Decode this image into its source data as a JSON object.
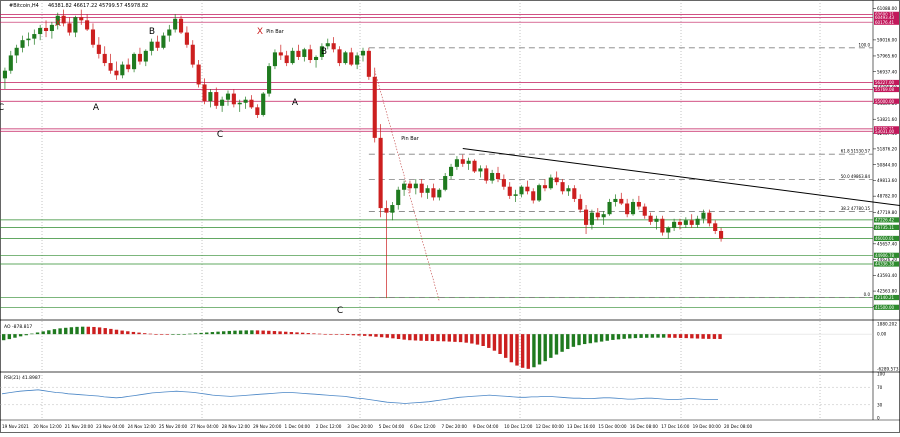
{
  "header": {
    "symbol": "#Bitcoin,H4",
    "ohlc": "46381.82 46617.22 45799.57 45978.82"
  },
  "colors": {
    "bull": "#1f7a1f",
    "bear": "#cc1f1f",
    "support": "#2e8b2e",
    "resistance": "#c2185b",
    "trend": "#000000",
    "dashed": "#808080",
    "rsi": "#4a86c6",
    "label_green_bg": "#2e8b2e",
    "label_red_bg": "#c2185b"
  },
  "panels": {
    "ao_title": "AO -878.817",
    "rsi_title": "RSI(21) 41.8987"
  },
  "chart_data": [
    {
      "type": "candlestick",
      "title": "#Bitcoin,H4",
      "y_ticks": [
        "61088.00",
        "59016.00",
        "57965.60",
        "56937.40",
        "55890.60",
        "54869.80",
        "53821.60",
        "52907.40",
        "51876.20",
        "50844.00",
        "49813.60",
        "48782.00",
        "47719.80",
        "46689.60",
        "45657.40",
        "44626.20",
        "43593.40",
        "42563.80",
        "41533.40"
      ],
      "ylim": [
        40800,
        61500
      ],
      "x_labels": [
        "19 Nov 2021",
        "20 Nov 12:00",
        "21 Nov 20:00",
        "23 Nov 04:00",
        "24 Nov 12:00",
        "25 Nov 20:00",
        "27 Nov 04:00",
        "28 Nov 12:00",
        "29 Nov 20:00",
        "1 Dec 04:00",
        "2 Dec 12:00",
        "3 Dec 20:00",
        "5 Dec 04:00",
        "6 Dec 12:00",
        "7 Dec 20:00",
        "9 Dec 04:00",
        "10 Dec 12:00",
        "12 Dec 00:00",
        "13 Dec 16:00",
        "15 Dec 00:00",
        "16 Dec 08:00",
        "17 Dec 16:00",
        "19 Dec 00:00",
        "20 Dec 08:00"
      ],
      "candles": [
        [
          56500,
          57200,
          55800,
          57000
        ],
        [
          57000,
          58300,
          56800,
          58000
        ],
        [
          58000,
          58700,
          57500,
          58500
        ],
        [
          58500,
          59300,
          58200,
          59000
        ],
        [
          59000,
          59500,
          58600,
          59100
        ],
        [
          59100,
          59700,
          58700,
          59400
        ],
        [
          59400,
          60000,
          59000,
          59800
        ],
        [
          59800,
          60300,
          59200,
          59600
        ],
        [
          59600,
          60200,
          59100,
          60000
        ],
        [
          60000,
          60800,
          59700,
          60600
        ],
        [
          60600,
          61000,
          59900,
          60100
        ],
        [
          60100,
          60500,
          59300,
          59500
        ],
        [
          59500,
          60600,
          59200,
          60500
        ],
        [
          60500,
          61000,
          60000,
          60300
        ],
        [
          60300,
          60700,
          59600,
          59700
        ],
        [
          59700,
          60100,
          58500,
          58700
        ],
        [
          58700,
          59200,
          57800,
          58100
        ],
        [
          58100,
          58600,
          57300,
          57500
        ],
        [
          57500,
          58100,
          56800,
          57000
        ],
        [
          57000,
          57600,
          56400,
          56700
        ],
        [
          56700,
          57600,
          56500,
          57400
        ],
        [
          57400,
          57800,
          56900,
          57100
        ],
        [
          57100,
          58200,
          56900,
          58100
        ],
        [
          58100,
          58500,
          57400,
          57600
        ],
        [
          57600,
          58400,
          57300,
          58300
        ],
        [
          58300,
          59100,
          58000,
          58900
        ],
        [
          58900,
          59300,
          58300,
          58500
        ],
        [
          58500,
          59500,
          58400,
          59300
        ],
        [
          59300,
          60000,
          58900,
          59700
        ],
        [
          59700,
          60700,
          59500,
          60400
        ],
        [
          60400,
          60600,
          59400,
          59500
        ],
        [
          59500,
          59900,
          58500,
          58700
        ],
        [
          58700,
          59000,
          57200,
          57400
        ],
        [
          57400,
          57700,
          55900,
          56100
        ],
        [
          56100,
          56500,
          54800,
          55000
        ],
        [
          55000,
          55800,
          54600,
          55600
        ],
        [
          55600,
          55900,
          54500,
          54700
        ],
        [
          54700,
          55300,
          54300,
          55100
        ],
        [
          55100,
          55700,
          54700,
          55500
        ],
        [
          55500,
          55800,
          54600,
          54800
        ],
        [
          54800,
          55100,
          54300,
          54900
        ],
        [
          54900,
          55300,
          54500,
          55100
        ],
        [
          55100,
          55400,
          54500,
          54600
        ],
        [
          54600,
          54800,
          53900,
          54100
        ],
        [
          54100,
          55600,
          54000,
          55500
        ],
        [
          55500,
          57500,
          55300,
          57300
        ],
        [
          57300,
          58400,
          57100,
          58200
        ],
        [
          58200,
          58700,
          57700,
          58000
        ],
        [
          58000,
          58300,
          57300,
          57500
        ],
        [
          57500,
          58500,
          57400,
          58300
        ],
        [
          58300,
          58700,
          57700,
          57900
        ],
        [
          57900,
          58500,
          57600,
          58400
        ],
        [
          58400,
          58700,
          57500,
          57700
        ],
        [
          57700,
          58000,
          57200,
          57900
        ],
        [
          57900,
          58800,
          57700,
          58600
        ],
        [
          58600,
          59100,
          58400,
          58800
        ],
        [
          58800,
          59200,
          58200,
          58400
        ],
        [
          58400,
          58600,
          57300,
          57500
        ],
        [
          57500,
          58300,
          57400,
          58200
        ],
        [
          58200,
          58500,
          57300,
          57400
        ],
        [
          57400,
          58200,
          57100,
          58000
        ],
        [
          58000,
          58500,
          57600,
          58300
        ],
        [
          58300,
          58500,
          56400,
          56600
        ],
        [
          56600,
          57200,
          52300,
          52600
        ],
        [
          52600,
          53500,
          47400,
          48000
        ],
        [
          48000,
          48500,
          42100,
          47700
        ],
        [
          47700,
          48400,
          47200,
          48200
        ],
        [
          48200,
          49400,
          47900,
          49200
        ],
        [
          49200,
          49800,
          48800,
          49600
        ],
        [
          49600,
          49800,
          49000,
          49300
        ],
        [
          49300,
          49900,
          48900,
          49600
        ],
        [
          49600,
          49900,
          48700,
          49000
        ],
        [
          49000,
          49500,
          48600,
          49300
        ],
        [
          49300,
          49600,
          48500,
          48700
        ],
        [
          48700,
          49300,
          48500,
          49200
        ],
        [
          49200,
          50300,
          49100,
          50100
        ],
        [
          50100,
          50900,
          49900,
          50700
        ],
        [
          50700,
          51400,
          50500,
          51200
        ],
        [
          51200,
          51500,
          50700,
          50900
        ],
        [
          50900,
          51300,
          50500,
          51100
        ],
        [
          51100,
          51200,
          50300,
          50400
        ],
        [
          50400,
          50800,
          50000,
          50600
        ],
        [
          50600,
          50800,
          49600,
          49800
        ],
        [
          49800,
          50500,
          49600,
          50300
        ],
        [
          50300,
          50700,
          49700,
          49900
        ],
        [
          49900,
          50200,
          49200,
          49400
        ],
        [
          49400,
          49700,
          48600,
          48800
        ],
        [
          48800,
          49200,
          48400,
          48900
        ],
        [
          48900,
          49500,
          48700,
          49400
        ],
        [
          49400,
          49800,
          48900,
          49100
        ],
        [
          49100,
          49300,
          48300,
          48500
        ],
        [
          48500,
          49600,
          48400,
          49500
        ],
        [
          49500,
          49900,
          49100,
          49300
        ],
        [
          49300,
          50200,
          49200,
          50000
        ],
        [
          50000,
          50400,
          49500,
          49700
        ],
        [
          49700,
          49900,
          48900,
          49100
        ],
        [
          49100,
          49500,
          48800,
          49300
        ],
        [
          49300,
          49500,
          48400,
          48600
        ],
        [
          48600,
          48900,
          47700,
          47900
        ],
        [
          47900,
          48200,
          46300,
          46900
        ],
        [
          46900,
          47900,
          46600,
          47700
        ],
        [
          47700,
          48000,
          47200,
          47400
        ],
        [
          47400,
          47800,
          46900,
          47600
        ],
        [
          47600,
          48600,
          47500,
          48400
        ],
        [
          48400,
          48900,
          48100,
          48600
        ],
        [
          48600,
          49000,
          48200,
          48300
        ],
        [
          48300,
          48600,
          47400,
          47600
        ],
        [
          47600,
          48600,
          47500,
          48400
        ],
        [
          48400,
          48800,
          47900,
          48100
        ],
        [
          48100,
          48300,
          47300,
          47500
        ],
        [
          47500,
          47700,
          46900,
          47100
        ],
        [
          47100,
          47500,
          46600,
          47300
        ],
        [
          47300,
          47500,
          46200,
          46400
        ],
        [
          46400,
          46800,
          46000,
          46700
        ],
        [
          46700,
          47300,
          46500,
          47100
        ],
        [
          47100,
          47300,
          46600,
          46900
        ],
        [
          46900,
          47400,
          46700,
          47200
        ],
        [
          47200,
          47600,
          46700,
          46900
        ],
        [
          46900,
          47500,
          46700,
          47300
        ],
        [
          47300,
          47900,
          47000,
          47700
        ],
        [
          47700,
          47900,
          46800,
          47000
        ],
        [
          47000,
          47200,
          46300,
          46500
        ],
        [
          46500,
          46700,
          45800,
          46000
        ]
      ],
      "horizontal_levels": {
        "resistance": [
          60690.31,
          60493.43,
          60176.41,
          56227.0,
          55769.08,
          55000.0,
          53190.21,
          53031.0
        ],
        "support": [
          47226.42,
          46735.11,
          46010.01,
          44906.78,
          44336.38,
          42140.21,
          41500.0
        ],
        "support_labels": [
          "47226.42",
          "46735.11",
          "46010.01",
          "44906.78",
          "44336.38",
          "42140.21",
          "41500.00"
        ],
        "resistance_labels": [
          "60690.31",
          "60493.43",
          "60176.41",
          "56227.00",
          "55769.08",
          "55000.00",
          "53190.21",
          "53031.00"
        ]
      },
      "fibonacci": [
        {
          "label": "61.8 51530.57",
          "value": 51530.57
        },
        {
          "label": "50.0 49863.84",
          "value": 49863.84
        },
        {
          "label": "38.2 47780.15",
          "value": 47780.15
        },
        {
          "label": "0.0",
          "value": 42140.21
        },
        {
          "label": "100.0",
          "value": 58500.0
        }
      ],
      "wave_labels": [
        "X",
        "B",
        "X",
        "Pin Bar",
        "B",
        "A",
        "A",
        "C",
        "C",
        "Pin Bar",
        "C",
        "C"
      ],
      "trendline": {
        "from": [
          78,
          51900
        ],
        "to": [
          145,
          47900
        ]
      }
    },
    {
      "type": "bar",
      "title": "AO -878.817",
      "y_ticks": [
        "1880.202",
        "0.00",
        "-6289.573"
      ],
      "ylim": [
        -6500,
        2200
      ],
      "values": [
        -1100,
        -900,
        -650,
        -400,
        -200,
        100,
        300,
        500,
        700,
        900,
        1050,
        1150,
        1250,
        1320,
        1350,
        1340,
        1300,
        1220,
        1100,
        950,
        800,
        650,
        520,
        400,
        280,
        170,
        80,
        -10,
        -60,
        -100,
        -80,
        -40,
        20,
        80,
        150,
        230,
        300,
        380,
        450,
        520,
        580,
        630,
        660,
        680,
        690,
        680,
        650,
        610,
        560,
        500,
        440,
        380,
        320,
        260,
        190,
        130,
        80,
        30,
        -20,
        -60,
        -110,
        -160,
        -210,
        -260,
        -310,
        -380,
        -470,
        -560,
        -650,
        -760,
        -880,
        -1000,
        -1100,
        -1150,
        -1200,
        -1230,
        -1250,
        -1270,
        -1300,
        -1350,
        -1400,
        -1450,
        -1550,
        -1700,
        -1900,
        -2150,
        -2500,
        -3000,
        -3600,
        -4300,
        -5100,
        -5700,
        -6100,
        -6289,
        -6000,
        -5500,
        -4900,
        -4300,
        -3700,
        -3200,
        -2700,
        -2300,
        -2000,
        -1800,
        -1650,
        -1500,
        -1350,
        -1200,
        -1050,
        -950,
        -850,
        -780,
        -720,
        -680,
        -660,
        -650,
        -640,
        -640,
        -650,
        -670,
        -690,
        -720,
        -760,
        -800,
        -840,
        -860,
        -870,
        -878
      ]
    },
    {
      "type": "line",
      "title": "RSI(21) 41.8987",
      "y_ticks": [
        "100",
        "70",
        "30",
        "0"
      ],
      "ylim": [
        0,
        100
      ],
      "values": [
        55,
        57,
        59,
        61,
        62,
        63,
        64,
        62,
        60,
        58,
        57,
        55,
        54,
        53,
        52,
        51,
        50,
        48,
        47,
        46,
        47,
        49,
        51,
        53,
        55,
        57,
        58,
        59,
        60,
        61,
        60,
        59,
        58,
        56,
        54,
        52,
        51,
        50,
        49,
        50,
        51,
        52,
        53,
        54,
        55,
        56,
        57,
        58,
        58,
        57,
        56,
        55,
        54,
        53,
        52,
        51,
        50,
        49,
        47,
        45,
        44,
        42,
        40,
        38,
        36,
        35,
        34,
        33,
        34,
        35,
        36,
        37,
        39,
        41,
        43,
        45,
        47,
        48,
        49,
        50,
        51,
        52,
        51,
        50,
        49,
        48,
        47,
        47,
        48,
        48,
        49,
        49,
        48,
        47,
        46,
        45,
        45,
        44,
        44,
        45,
        46,
        46,
        45,
        44,
        43,
        43,
        44,
        45,
        45,
        44,
        43,
        42,
        42,
        43,
        44,
        44,
        43,
        42,
        42,
        41.9
      ],
      "level_lines": [
        70,
        30
      ]
    }
  ]
}
